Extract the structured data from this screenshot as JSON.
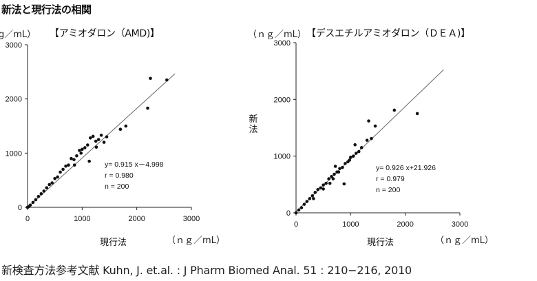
{
  "page": {
    "title": "新法と現行法の相関",
    "reference": "新検査方法参考文献  Kuhn, J. et.al. : J Pharm Biomed Anal. 51 : 210−216, 2010"
  },
  "chart_data": [
    {
      "type": "scatter",
      "title": "【アミオダロン（AMD)】",
      "xlabel": "現行法",
      "ylabel": "",
      "x_unit": "（ｎｇ／mL）",
      "y_unit": "g／mL）",
      "xlim": [
        0,
        3000
      ],
      "ylim": [
        0,
        3000
      ],
      "x_ticks": [
        0,
        1000,
        2000,
        3000
      ],
      "y_ticks": [
        0,
        1000,
        2000,
        3000
      ],
      "grid": false,
      "annotations": [
        "y= 0.915 x－4.998",
        "r = 0.980",
        "n = 200"
      ],
      "regression": {
        "slope": 0.915,
        "intercept": -4.998
      },
      "points": [
        [
          2250,
          2380
        ],
        [
          2550,
          2350
        ],
        [
          2200,
          1830
        ],
        [
          1800,
          1500
        ],
        [
          1700,
          1440
        ],
        [
          1450,
          1300
        ],
        [
          1400,
          1200
        ],
        [
          1350,
          1330
        ],
        [
          1300,
          1250
        ],
        [
          1250,
          1220
        ],
        [
          1200,
          1310
        ],
        [
          1150,
          1280
        ],
        [
          1100,
          1150
        ],
        [
          1050,
          1100
        ],
        [
          1000,
          1070
        ],
        [
          980,
          1000
        ],
        [
          950,
          1050
        ],
        [
          900,
          950
        ],
        [
          850,
          880
        ],
        [
          800,
          900
        ],
        [
          750,
          780
        ],
        [
          700,
          760
        ],
        [
          650,
          700
        ],
        [
          600,
          650
        ],
        [
          550,
          560
        ],
        [
          500,
          530
        ],
        [
          450,
          450
        ],
        [
          400,
          420
        ],
        [
          350,
          360
        ],
        [
          300,
          300
        ],
        [
          250,
          250
        ],
        [
          200,
          200
        ],
        [
          150,
          140
        ],
        [
          100,
          90
        ],
        [
          50,
          40
        ],
        [
          20,
          10
        ],
        [
          0,
          0
        ],
        [
          1130,
          850
        ],
        [
          1260,
          1110
        ],
        [
          860,
          780
        ]
      ]
    },
    {
      "type": "scatter",
      "title": "【デスエチルアミオダロン（ＤＥＡ)】",
      "xlabel": "現行法",
      "ylabel": "新法",
      "x_unit": "（ｎｇ／mL）",
      "y_unit": "（ｎｇ／mL）",
      "xlim": [
        0,
        3000
      ],
      "ylim": [
        0,
        3000
      ],
      "x_ticks": [
        0,
        1000,
        2000,
        3000
      ],
      "y_ticks": [
        0,
        1000,
        2000,
        3000
      ],
      "grid": false,
      "annotations": [
        "y= 0.926 x+21.926",
        "r = 0.979",
        "n = 200"
      ],
      "regression": {
        "slope": 0.926,
        "intercept": 21.926
      },
      "points": [
        [
          2220,
          1750
        ],
        [
          1800,
          1810
        ],
        [
          1330,
          1620
        ],
        [
          1450,
          1530
        ],
        [
          1380,
          1310
        ],
        [
          1300,
          1280
        ],
        [
          1200,
          1150
        ],
        [
          1100,
          1050
        ],
        [
          1050,
          1000
        ],
        [
          1000,
          980
        ],
        [
          950,
          900
        ],
        [
          900,
          870
        ],
        [
          850,
          800
        ],
        [
          800,
          780
        ],
        [
          750,
          720
        ],
        [
          700,
          680
        ],
        [
          650,
          640
        ],
        [
          600,
          600
        ],
        [
          550,
          520
        ],
        [
          500,
          490
        ],
        [
          450,
          440
        ],
        [
          400,
          410
        ],
        [
          350,
          360
        ],
        [
          300,
          300
        ],
        [
          250,
          250
        ],
        [
          200,
          200
        ],
        [
          150,
          150
        ],
        [
          100,
          90
        ],
        [
          50,
          50
        ],
        [
          0,
          0
        ],
        [
          880,
          510
        ],
        [
          720,
          820
        ],
        [
          620,
          520
        ],
        [
          1150,
          1080
        ],
        [
          780,
          720
        ],
        [
          500,
          420
        ],
        [
          980,
          930
        ],
        [
          320,
          250
        ],
        [
          680,
          600
        ],
        [
          1080,
          1200
        ]
      ]
    }
  ]
}
